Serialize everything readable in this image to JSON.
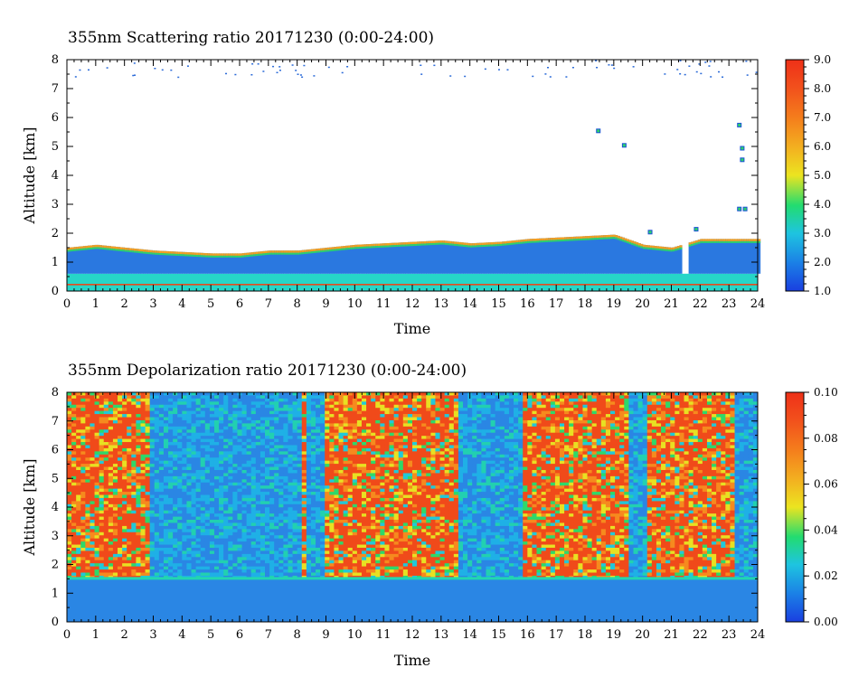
{
  "chart_data": [
    {
      "type": "heatmap",
      "title": "355nm Scattering ratio  20171230 (0:00-24:00)",
      "xlabel": "Time",
      "ylabel": "Altitude [km]",
      "xlim": [
        0,
        24
      ],
      "ylim": [
        0,
        8
      ],
      "x_ticks": [
        "0",
        "1",
        "2",
        "3",
        "4",
        "5",
        "6",
        "7",
        "8",
        "9",
        "10",
        "11",
        "12",
        "13",
        "14",
        "15",
        "16",
        "17",
        "18",
        "19",
        "20",
        "21",
        "22",
        "23",
        "24"
      ],
      "y_ticks": [
        "0",
        "1",
        "2",
        "3",
        "4",
        "5",
        "6",
        "7",
        "8"
      ],
      "colorbar": {
        "range": [
          1.0,
          9.0
        ],
        "ticks": [
          "1.0",
          "2.0",
          "3.0",
          "4.0",
          "5.0",
          "6.0",
          "7.0",
          "8.0",
          "9.0"
        ]
      },
      "description_data": {
        "boundary_layer_top_km": [
          [
            0,
            1.5
          ],
          [
            1,
            1.6
          ],
          [
            2,
            1.5
          ],
          [
            3,
            1.4
          ],
          [
            4,
            1.35
          ],
          [
            5,
            1.3
          ],
          [
            6,
            1.3
          ],
          [
            7,
            1.4
          ],
          [
            8,
            1.4
          ],
          [
            9,
            1.5
          ],
          [
            10,
            1.6
          ],
          [
            11,
            1.65
          ],
          [
            12,
            1.7
          ],
          [
            13,
            1.75
          ],
          [
            14,
            1.65
          ],
          [
            15,
            1.7
          ],
          [
            16,
            1.8
          ],
          [
            17,
            1.85
          ],
          [
            18,
            1.9
          ],
          [
            19,
            1.95
          ],
          [
            20,
            1.6
          ],
          [
            21,
            1.5
          ],
          [
            22,
            1.8
          ],
          [
            23,
            1.8
          ],
          [
            24,
            1.8
          ]
        ],
        "low_bright_layer_km": [
          0.2,
          0.6
        ]
      }
    },
    {
      "type": "heatmap",
      "title": "355nm Depolarization ratio  20171230 (0:00-24:00)",
      "xlabel": "Time",
      "ylabel": "Altitude [km]",
      "xlim": [
        0,
        24
      ],
      "ylim": [
        0,
        8
      ],
      "x_ticks": [
        "0",
        "1",
        "2",
        "3",
        "4",
        "5",
        "6",
        "7",
        "8",
        "9",
        "10",
        "11",
        "12",
        "13",
        "14",
        "15",
        "16",
        "17",
        "18",
        "19",
        "20",
        "21",
        "22",
        "23",
        "24"
      ],
      "y_ticks": [
        "0",
        "1",
        "2",
        "3",
        "4",
        "5",
        "6",
        "7",
        "8"
      ],
      "colorbar": {
        "range": [
          0.0,
          0.1
        ],
        "ticks": [
          "0.00",
          "0.02",
          "0.04",
          "0.06",
          "0.08",
          "0.10"
        ]
      },
      "description_data": {
        "low_depol_columns_hours": [
          [
            2.8,
            8.0
          ],
          [
            8.3,
            8.8
          ],
          [
            13.5,
            15.8
          ],
          [
            19.5,
            20.0
          ],
          [
            23.2,
            24.0
          ]
        ],
        "boundary_layer_top_km": 1.5
      }
    }
  ]
}
